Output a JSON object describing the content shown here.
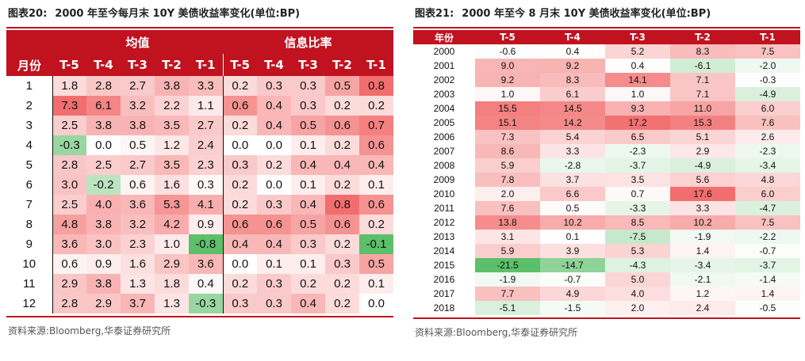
{
  "left": {
    "title_num": "图表20:",
    "title_text": "2000 年至今每月末 10Y 美债收益率变化(单位:BP)",
    "group_mean": "均值",
    "group_ratio": "信息比率",
    "month_header": "月份",
    "cols": [
      "T-5",
      "T-4",
      "T-3",
      "T-2",
      "T-1"
    ],
    "rows": [
      {
        "m": "1",
        "mean": [
          "1.8",
          "2.8",
          "2.7",
          "3.8",
          "3.3"
        ],
        "ratio": [
          "0.2",
          "0.3",
          "0.3",
          "0.5",
          "0.8"
        ]
      },
      {
        "m": "2",
        "mean": [
          "7.3",
          "6.1",
          "3.2",
          "2.2",
          "1.1"
        ],
        "ratio": [
          "0.6",
          "0.4",
          "0.3",
          "0.2",
          "0.2"
        ]
      },
      {
        "m": "3",
        "mean": [
          "2.5",
          "3.8",
          "3.8",
          "3.5",
          "2.7"
        ],
        "ratio": [
          "0.2",
          "0.4",
          "0.5",
          "0.6",
          "0.7"
        ]
      },
      {
        "m": "4",
        "mean": [
          "-0.3",
          "0.0",
          "0.5",
          "1.2",
          "2.4"
        ],
        "ratio": [
          "0.0",
          "0.0",
          "0.1",
          "0.2",
          "0.6"
        ]
      },
      {
        "m": "5",
        "mean": [
          "2.8",
          "2.5",
          "2.7",
          "3.5",
          "2.3"
        ],
        "ratio": [
          "0.3",
          "0.2",
          "0.4",
          "0.4",
          "0.4"
        ]
      },
      {
        "m": "6",
        "mean": [
          "3.0",
          "-0.2",
          "0.6",
          "1.6",
          "0.3"
        ],
        "ratio": [
          "0.2",
          "0.0",
          "0.1",
          "0.2",
          "0.1"
        ]
      },
      {
        "m": "7",
        "mean": [
          "2.5",
          "4.0",
          "3.6",
          "5.3",
          "4.1"
        ],
        "ratio": [
          "0.2",
          "0.3",
          "0.4",
          "0.8",
          "0.6"
        ]
      },
      {
        "m": "8",
        "mean": [
          "4.8",
          "3.8",
          "3.2",
          "4.2",
          "0.9"
        ],
        "ratio": [
          "0.6",
          "0.6",
          "0.5",
          "0.6",
          "0.2"
        ]
      },
      {
        "m": "9",
        "mean": [
          "3.6",
          "3.0",
          "2.3",
          "1.0",
          "-0.8"
        ],
        "ratio": [
          "0.4",
          "0.4",
          "0.3",
          "0.2",
          "-0.1"
        ]
      },
      {
        "m": "10",
        "mean": [
          "0.6",
          "0.9",
          "1.6",
          "2.9",
          "3.6"
        ],
        "ratio": [
          "0.0",
          "0.1",
          "0.1",
          "0.3",
          "0.5"
        ]
      },
      {
        "m": "11",
        "mean": [
          "2.9",
          "3.8",
          "1.3",
          "1.8",
          "0.4"
        ],
        "ratio": [
          "0.2",
          "0.3",
          "0.2",
          "0.2",
          "0.1"
        ]
      },
      {
        "m": "12",
        "mean": [
          "2.8",
          "2.9",
          "3.7",
          "1.3",
          "-0.3"
        ],
        "ratio": [
          "0.3",
          "0.3",
          "0.4",
          "0.2",
          "0.0"
        ]
      }
    ],
    "source": "资料来源:Bloomberg,华泰证券研究所"
  },
  "right": {
    "title_num": "图表21:",
    "title_text": "2000 年至今 8 月末 10Y 美债收益率变化(单位:BP)",
    "year_header": "年份",
    "cols": [
      "T-5",
      "T-4",
      "T-3",
      "T-2",
      "T-1"
    ],
    "rows": [
      {
        "y": "2000",
        "v": [
          "-0.6",
          "0.4",
          "5.2",
          "8.3",
          "7.5"
        ]
      },
      {
        "y": "2001",
        "v": [
          "9.0",
          "9.2",
          "0.4",
          "-6.1",
          "-2.0"
        ]
      },
      {
        "y": "2002",
        "v": [
          "9.2",
          "8.3",
          "14.1",
          "7.1",
          "-0.3"
        ]
      },
      {
        "y": "2003",
        "v": [
          "1.0",
          "6.1",
          "1.0",
          "7.1",
          "-4.9"
        ]
      },
      {
        "y": "2004",
        "v": [
          "15.5",
          "14.5",
          "9.3",
          "11.0",
          "6.0"
        ]
      },
      {
        "y": "2005",
        "v": [
          "15.1",
          "14.2",
          "17.2",
          "15.3",
          "7.6"
        ]
      },
      {
        "y": "2006",
        "v": [
          "7.3",
          "5.4",
          "6.5",
          "5.1",
          "2.6"
        ]
      },
      {
        "y": "2007",
        "v": [
          "8.6",
          "3.3",
          "-2.3",
          "2.9",
          "-2.3"
        ]
      },
      {
        "y": "2008",
        "v": [
          "5.9",
          "-2.8",
          "-3.7",
          "-4.9",
          "-3.4"
        ]
      },
      {
        "y": "2009",
        "v": [
          "7.8",
          "3.7",
          "3.5",
          "5.6",
          "4.8"
        ]
      },
      {
        "y": "2010",
        "v": [
          "2.0",
          "6.6",
          "0.7",
          "17.6",
          "6.0"
        ]
      },
      {
        "y": "2011",
        "v": [
          "7.6",
          "0.5",
          "-3.3",
          "3.3",
          "-4.7"
        ]
      },
      {
        "y": "2012",
        "v": [
          "13.8",
          "10.2",
          "8.5",
          "10.2",
          "7.5"
        ]
      },
      {
        "y": "2013",
        "v": [
          "3.1",
          "0.1",
          "-7.5",
          "-1.9",
          "-2.2"
        ]
      },
      {
        "y": "2014",
        "v": [
          "5.9",
          "3.9",
          "5.3",
          "1.4",
          "-0.7"
        ]
      },
      {
        "y": "2015",
        "v": [
          "-21.5",
          "-14.7",
          "-4.3",
          "-3.4",
          "-3.7"
        ]
      },
      {
        "y": "2016",
        "v": [
          "-1.9",
          "-0.7",
          "5.0",
          "-2.1",
          "-1.4"
        ]
      },
      {
        "y": "2017",
        "v": [
          "7.7",
          "4.9",
          "4.0",
          "1.2",
          "1.4"
        ]
      },
      {
        "y": "2018",
        "v": [
          "-5.1",
          "-1.5",
          "2.0",
          "2.4",
          "-0.5"
        ]
      }
    ],
    "source": "资料来源:Bloomberg,华泰证券研究所"
  },
  "colors": {
    "accent": "#c0121f",
    "positive": "#f28b8b",
    "negative": "#5cbf6a"
  }
}
